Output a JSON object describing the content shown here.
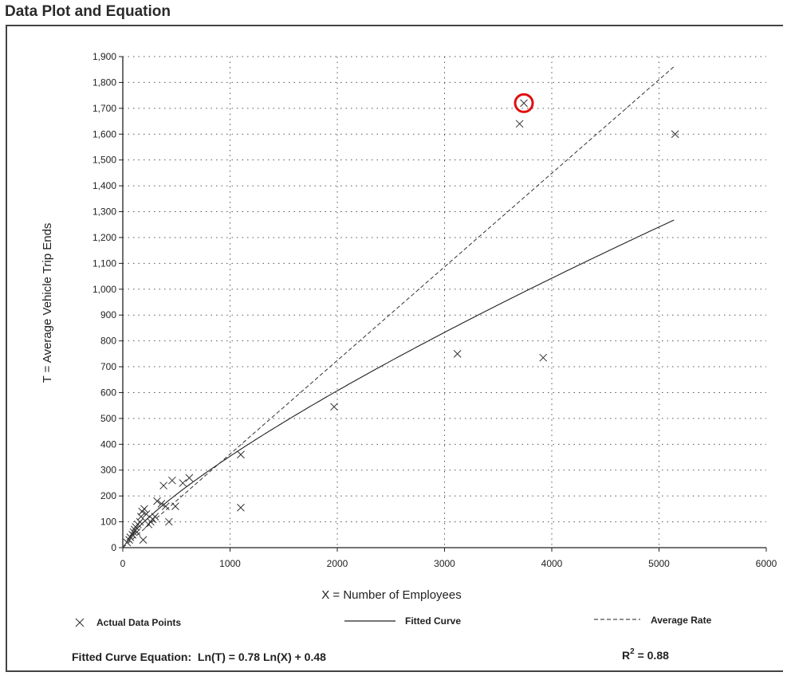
{
  "page": {
    "title": "Data Plot and Equation"
  },
  "chart_data": {
    "type": "scatter",
    "xlabel": "X = Number of Employees",
    "ylabel": "T = Average Vehicle Trip Ends",
    "xlim": [
      0,
      6000
    ],
    "ylim": [
      0,
      1900
    ],
    "x_ticks": [
      "0",
      "1000",
      "2000",
      "3000",
      "4000",
      "5000",
      "6000"
    ],
    "y_ticks": [
      "0",
      "100",
      "200",
      "300",
      "400",
      "500",
      "600",
      "700",
      "800",
      "900",
      "1,000",
      "1,100",
      "1,200",
      "1,300",
      "1,400",
      "1,500",
      "1,600",
      "1,700",
      "1,800",
      "1,900"
    ],
    "grid": true,
    "series": [
      {
        "name": "Actual Data Points",
        "type": "scatter",
        "points": [
          [
            40,
            20
          ],
          [
            60,
            30
          ],
          [
            70,
            40
          ],
          [
            90,
            50
          ],
          [
            100,
            60
          ],
          [
            110,
            70
          ],
          [
            120,
            80
          ],
          [
            130,
            60
          ],
          [
            140,
            90
          ],
          [
            160,
            100
          ],
          [
            170,
            120
          ],
          [
            180,
            140
          ],
          [
            190,
            30
          ],
          [
            200,
            150
          ],
          [
            220,
            130
          ],
          [
            240,
            90
          ],
          [
            260,
            100
          ],
          [
            280,
            110
          ],
          [
            300,
            120
          ],
          [
            320,
            180
          ],
          [
            360,
            170
          ],
          [
            380,
            240
          ],
          [
            400,
            160
          ],
          [
            430,
            100
          ],
          [
            460,
            260
          ],
          [
            490,
            160
          ],
          [
            560,
            250
          ],
          [
            620,
            270
          ],
          [
            1100,
            360
          ],
          [
            1100,
            155
          ],
          [
            1970,
            545
          ],
          [
            3120,
            750
          ],
          [
            3700,
            1640
          ],
          [
            3740,
            1720
          ],
          [
            3920,
            735
          ],
          [
            5150,
            1600
          ]
        ]
      },
      {
        "name": "Fitted Curve",
        "type": "line",
        "style": "solid",
        "equation": "Ln(T) = 0.78 Ln(X) + 0.48"
      },
      {
        "name": "Average Rate",
        "type": "line",
        "style": "dashed",
        "endpoints": [
          [
            0,
            0
          ],
          [
            5150,
            1865
          ]
        ]
      }
    ],
    "highlight": {
      "point": [
        3740,
        1720
      ],
      "color": "#e01010"
    },
    "legend": {
      "position": "bottom",
      "items": [
        {
          "label": "Actual Data Points",
          "marker": "x"
        },
        {
          "label": "Fitted Curve",
          "marker": "solid-line"
        },
        {
          "label": "Average Rate",
          "marker": "dashed-line"
        }
      ]
    },
    "fitted_equation_label": "Fitted Curve Equation:  Ln(T) = 0.78 Ln(X) + 0.48",
    "r_squared_label": "R",
    "r_squared_sup": "2",
    "r_squared_value": " = 0.88"
  },
  "colors": {
    "axis": "#222222",
    "grid": "#555555",
    "points": "#333333",
    "highlight": "#e01010"
  }
}
